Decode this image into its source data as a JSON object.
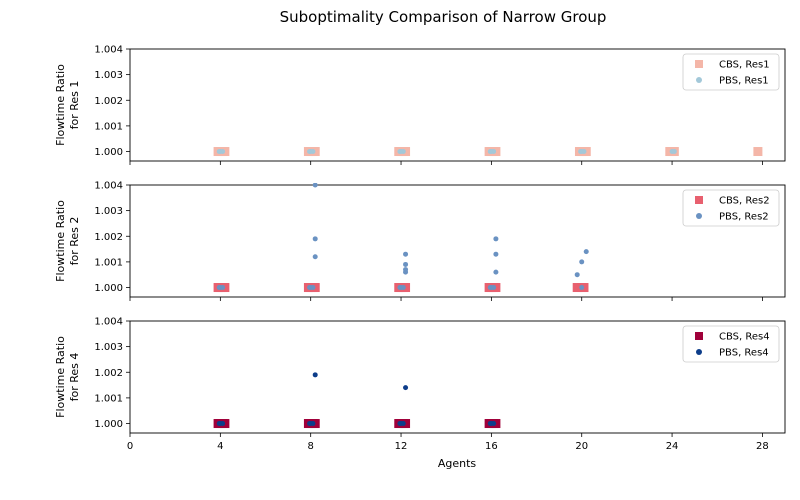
{
  "figure": {
    "title": "Suboptimality Comparison of Narrow Group",
    "xlabel": "Agents"
  },
  "chart_data": [
    {
      "type": "scatter",
      "title": "",
      "xlabel": "",
      "ylabel_line1": "Flowtime Ratio",
      "ylabel_line2": "for Res 1",
      "xlim": [
        0,
        29
      ],
      "ylim": [
        0.99963,
        1.004
      ],
      "xticks": [
        0,
        4,
        8,
        12,
        16,
        20,
        24,
        28
      ],
      "yticks": [
        1.0,
        1.001,
        1.002,
        1.003,
        1.004
      ],
      "ytick_labels": [
        "1.000",
        "1.001",
        "1.002",
        "1.003",
        "1.004"
      ],
      "legend_position": "top-right",
      "series": [
        {
          "name": "CBS, Res1",
          "marker": "square",
          "color": "#f4b6a8",
          "points": [
            [
              4.0,
              1.0
            ],
            [
              4.1,
              1.0
            ],
            [
              4.2,
              1.0
            ],
            [
              3.9,
              1.0
            ],
            [
              8.0,
              1.0
            ],
            [
              8.1,
              1.0
            ],
            [
              8.2,
              1.0
            ],
            [
              7.9,
              1.0
            ],
            [
              12.0,
              1.0
            ],
            [
              12.1,
              1.0
            ],
            [
              12.2,
              1.0
            ],
            [
              11.9,
              1.0
            ],
            [
              16.0,
              1.0
            ],
            [
              16.1,
              1.0
            ],
            [
              16.2,
              1.0
            ],
            [
              15.9,
              1.0
            ],
            [
              20.0,
              1.0
            ],
            [
              20.1,
              1.0
            ],
            [
              20.2,
              1.0
            ],
            [
              19.9,
              1.0
            ],
            [
              24.0,
              1.0
            ],
            [
              24.1,
              1.0
            ],
            [
              23.9,
              1.0
            ],
            [
              27.8,
              1.0
            ]
          ]
        },
        {
          "name": "PBS, Res1",
          "marker": "circle",
          "color": "#a3c8d9",
          "points": [
            [
              4.0,
              1.0
            ],
            [
              4.1,
              1.0
            ],
            [
              3.95,
              1.0
            ],
            [
              8.0,
              1.0
            ],
            [
              8.1,
              1.0
            ],
            [
              7.95,
              1.0
            ],
            [
              12.0,
              1.0
            ],
            [
              12.1,
              1.0
            ],
            [
              11.95,
              1.0
            ],
            [
              16.0,
              1.0
            ],
            [
              16.1,
              1.0
            ],
            [
              15.95,
              1.0
            ],
            [
              20.0,
              1.0
            ],
            [
              20.1,
              1.0
            ],
            [
              19.95,
              1.0
            ],
            [
              24.0,
              1.0
            ],
            [
              24.1,
              1.0
            ]
          ]
        }
      ]
    },
    {
      "type": "scatter",
      "title": "",
      "xlabel": "",
      "ylabel_line1": "Flowtime Ratio",
      "ylabel_line2": "for Res 2",
      "xlim": [
        0,
        29
      ],
      "ylim": [
        0.99963,
        1.004
      ],
      "xticks": [
        0,
        4,
        8,
        12,
        16,
        20,
        24,
        28
      ],
      "yticks": [
        1.0,
        1.001,
        1.002,
        1.003,
        1.004
      ],
      "ytick_labels": [
        "1.000",
        "1.001",
        "1.002",
        "1.003",
        "1.004"
      ],
      "legend_position": "top-right",
      "series": [
        {
          "name": "CBS, Res2",
          "marker": "square",
          "color": "#e8606f",
          "points": [
            [
              4.0,
              1.0
            ],
            [
              4.1,
              1.0
            ],
            [
              4.2,
              1.0
            ],
            [
              3.9,
              1.0
            ],
            [
              8.0,
              1.0
            ],
            [
              8.1,
              1.0
            ],
            [
              8.2,
              1.0
            ],
            [
              7.9,
              1.0
            ],
            [
              12.0,
              1.0
            ],
            [
              12.1,
              1.0
            ],
            [
              12.2,
              1.0
            ],
            [
              11.9,
              1.0
            ],
            [
              16.0,
              1.0
            ],
            [
              16.1,
              1.0
            ],
            [
              16.2,
              1.0
            ],
            [
              15.9,
              1.0
            ],
            [
              19.8,
              1.0
            ],
            [
              20.0,
              1.0
            ],
            [
              20.1,
              1.0
            ]
          ]
        },
        {
          "name": "PBS, Res2",
          "marker": "circle",
          "color": "#6a92c2",
          "points": [
            [
              4.0,
              1.0
            ],
            [
              4.1,
              1.0
            ],
            [
              3.95,
              1.0
            ],
            [
              8.0,
              1.0
            ],
            [
              8.1,
              1.0
            ],
            [
              7.95,
              1.0
            ],
            [
              8.2,
              1.0012
            ],
            [
              8.2,
              1.0019
            ],
            [
              8.2,
              1.004
            ],
            [
              12.0,
              1.0
            ],
            [
              12.1,
              1.0
            ],
            [
              11.95,
              1.0
            ],
            [
              12.2,
              1.0006
            ],
            [
              12.2,
              1.0007
            ],
            [
              12.2,
              1.0009
            ],
            [
              12.2,
              1.0013
            ],
            [
              16.0,
              1.0
            ],
            [
              16.1,
              1.0
            ],
            [
              15.95,
              1.0
            ],
            [
              16.2,
              1.0006
            ],
            [
              16.2,
              1.0013
            ],
            [
              16.2,
              1.0019
            ],
            [
              20.0,
              1.0
            ],
            [
              19.8,
              1.0005
            ],
            [
              20.0,
              1.001
            ],
            [
              20.2,
              1.0014
            ]
          ]
        }
      ]
    },
    {
      "type": "scatter",
      "title": "",
      "xlabel": "Agents",
      "ylabel_line1": "Flowtime Ratio",
      "ylabel_line2": "for Res 4",
      "xlim": [
        0,
        29
      ],
      "ylim": [
        0.99963,
        1.004
      ],
      "xticks": [
        0,
        4,
        8,
        12,
        16,
        20,
        24,
        28
      ],
      "yticks": [
        1.0,
        1.001,
        1.002,
        1.003,
        1.004
      ],
      "ytick_labels": [
        "1.000",
        "1.001",
        "1.002",
        "1.003",
        "1.004"
      ],
      "legend_position": "top-right",
      "series": [
        {
          "name": "CBS, Res4",
          "marker": "square",
          "color": "#a0003a",
          "points": [
            [
              4.0,
              1.0
            ],
            [
              4.1,
              1.0
            ],
            [
              4.2,
              1.0
            ],
            [
              3.9,
              1.0
            ],
            [
              8.0,
              1.0
            ],
            [
              8.1,
              1.0
            ],
            [
              8.2,
              1.0
            ],
            [
              7.9,
              1.0
            ],
            [
              12.0,
              1.0
            ],
            [
              12.1,
              1.0
            ],
            [
              12.2,
              1.0
            ],
            [
              11.9,
              1.0
            ],
            [
              16.0,
              1.0
            ],
            [
              16.1,
              1.0
            ],
            [
              16.2,
              1.0
            ],
            [
              15.9,
              1.0
            ]
          ]
        },
        {
          "name": "PBS, Res4",
          "marker": "circle",
          "color": "#0d3d8a",
          "points": [
            [
              4.0,
              1.0
            ],
            [
              4.1,
              1.0
            ],
            [
              3.95,
              1.0
            ],
            [
              8.0,
              1.0
            ],
            [
              8.1,
              1.0
            ],
            [
              7.95,
              1.0
            ],
            [
              8.2,
              1.0019
            ],
            [
              12.0,
              1.0
            ],
            [
              12.1,
              1.0
            ],
            [
              11.95,
              1.0
            ],
            [
              12.2,
              1.0014
            ],
            [
              16.0,
              1.0
            ],
            [
              16.1,
              1.0
            ],
            [
              15.95,
              1.0
            ]
          ]
        }
      ]
    }
  ]
}
